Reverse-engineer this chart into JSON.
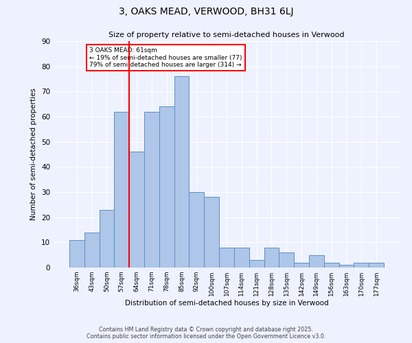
{
  "title1": "3, OAKS MEAD, VERWOOD, BH31 6LJ",
  "title2": "Size of property relative to semi-detached houses in Verwood",
  "xlabel": "Distribution of semi-detached houses by size in Verwood",
  "ylabel": "Number of semi-detached properties",
  "categories": [
    "36sqm",
    "43sqm",
    "50sqm",
    "57sqm",
    "64sqm",
    "71sqm",
    "78sqm",
    "85sqm",
    "92sqm",
    "100sqm",
    "107sqm",
    "114sqm",
    "121sqm",
    "128sqm",
    "135sqm",
    "142sqm",
    "149sqm",
    "156sqm",
    "163sqm",
    "170sqm",
    "177sqm"
  ],
  "values": [
    11,
    14,
    23,
    62,
    46,
    62,
    64,
    76,
    30,
    28,
    8,
    8,
    3,
    8,
    6,
    2,
    5,
    2,
    1,
    2,
    2
  ],
  "bar_color": "#aec6e8",
  "bar_edge_color": "#5a8fc4",
  "ylim": [
    0,
    90
  ],
  "yticks": [
    0,
    10,
    20,
    30,
    40,
    50,
    60,
    70,
    80,
    90
  ],
  "property_label": "3 OAKS MEAD: 61sqm",
  "pct_smaller": 19,
  "pct_larger": 79,
  "count_smaller": 77,
  "count_larger": 314,
  "vline_x_index": 3.5,
  "bg_color": "#eef2ff",
  "grid_color": "#ffffff",
  "footer1": "Contains HM Land Registry data © Crown copyright and database right 2025.",
  "footer2": "Contains public sector information licensed under the Open Government Licence v3.0."
}
